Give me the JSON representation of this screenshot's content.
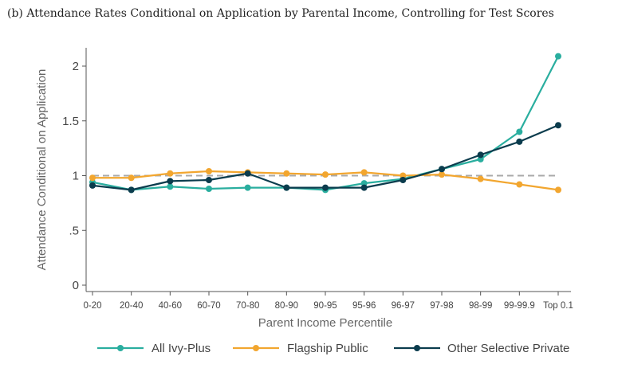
{
  "figure": {
    "title": "(b) Attendance Rates Conditional on Application by Parental Income, Controlling for Test Scores"
  },
  "chart_data": {
    "type": "line",
    "title": "(b) Attendance Rates Conditional on Application by Parental Income, Controlling for Test Scores",
    "xlabel": "Parent Income Percentile",
    "ylabel": "Attendance Conditional on Application",
    "categories": [
      "0-20",
      "20-40",
      "40-60",
      "60-70",
      "70-80",
      "80-90",
      "90-95",
      "95-96",
      "96-97",
      "97-98",
      "98-99",
      "99-99.9",
      "Top 0.1"
    ],
    "y_ticks": [
      0,
      0.5,
      1,
      1.5,
      2
    ],
    "y_tick_labels": [
      "0",
      ".5",
      "1",
      "1.5",
      "2"
    ],
    "ylim": [
      0,
      2.15
    ],
    "reference_line": {
      "y": 1,
      "style": "dashed",
      "color": "#aaaaaa"
    },
    "grid": false,
    "legend_position": "bottom",
    "series": [
      {
        "name": "All Ivy-Plus",
        "color": "#2aae9f",
        "values": [
          0.94,
          0.87,
          0.9,
          0.88,
          0.89,
          0.89,
          0.87,
          0.93,
          0.97,
          1.06,
          1.15,
          1.4,
          2.09
        ]
      },
      {
        "name": "Flagship Public",
        "color": "#f2a62f",
        "values": [
          0.98,
          0.98,
          1.02,
          1.04,
          1.03,
          1.02,
          1.01,
          1.03,
          1.0,
          1.01,
          0.97,
          0.92,
          0.87
        ]
      },
      {
        "name": "Other Selective Private",
        "color": "#0b3c4d",
        "values": [
          0.91,
          0.87,
          0.95,
          0.96,
          1.02,
          0.89,
          0.89,
          0.89,
          0.96,
          1.06,
          1.19,
          1.31,
          1.46
        ]
      }
    ]
  }
}
